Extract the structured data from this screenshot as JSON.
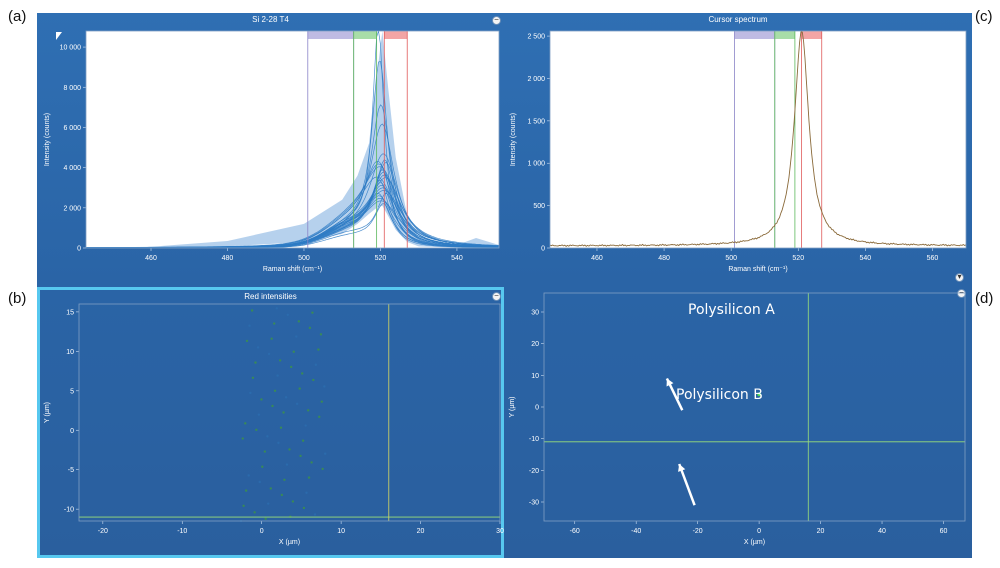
{
  "panel_labels": {
    "a": "(a)",
    "b": "(b)",
    "c": "(c)",
    "d": "(d)"
  },
  "colors": {
    "workspace": "#2f6fb3",
    "plot_border": "#7f9fc4",
    "spectrum": "#2e7bc4",
    "cursor_spectrum": "#8a6a3a",
    "selection_border": "#57c8ef",
    "band_purple": "#b8b4e0",
    "band_green": "#9ed99e",
    "band_red": "#f29b9b"
  },
  "chart_data": [
    {
      "id": "a",
      "type": "line",
      "title": "Si 2-28 T4",
      "xlabel": "Raman shift (cm⁻¹)",
      "ylabel": "Intensity (counts)",
      "xlim": [
        443,
        551
      ],
      "ylim": [
        0,
        10800
      ],
      "xticks": [
        460,
        480,
        500,
        520,
        540
      ],
      "yticks": [
        0,
        2000,
        4000,
        6000,
        8000,
        10000
      ],
      "ytick_labels": [
        "0",
        "2 000",
        "4 000",
        "6 000",
        "8 000",
        "10 000"
      ],
      "bands": [
        {
          "name": "purple",
          "x": [
            501,
            513
          ]
        },
        {
          "name": "green",
          "x": [
            513,
            519
          ]
        },
        {
          "name": "red",
          "x": [
            521,
            527
          ]
        }
      ],
      "series_peaks": [
        10500,
        8900,
        6800,
        5900,
        4500,
        4000,
        3900,
        3800,
        3700,
        3600,
        3500,
        3400,
        3300,
        3200,
        3100,
        3000,
        2900,
        2800,
        2700,
        2600,
        2500,
        2400,
        2300,
        2200,
        2100,
        2000
      ],
      "peak_center": 520.5,
      "envelope": {
        "x": [
          443,
          460,
          480,
          500,
          510,
          514,
          517,
          519,
          520.5,
          522,
          524,
          527,
          530,
          540,
          545,
          551
        ],
        "upper": [
          20,
          60,
          350,
          1200,
          2400,
          3600,
          5200,
          8500,
          10800,
          8000,
          4500,
          1600,
          500,
          150,
          500,
          150
        ],
        "lower": [
          0,
          10,
          80,
          300,
          700,
          1200,
          1700,
          2000,
          2100,
          1600,
          900,
          300,
          80,
          20,
          10,
          0
        ]
      }
    },
    {
      "id": "c",
      "type": "line",
      "title": "Cursor spectrum",
      "xlabel": "Raman shift (cm⁻¹)",
      "ylabel": "Intensity (counts)",
      "xlim": [
        446,
        570
      ],
      "ylim": [
        0,
        2560
      ],
      "xticks": [
        460,
        480,
        500,
        520,
        540,
        560
      ],
      "yticks": [
        0,
        500,
        1000,
        1500,
        2000,
        2500
      ],
      "ytick_labels": [
        "0",
        "500",
        "1 000",
        "1 500",
        "2 000",
        "2 500"
      ],
      "bands": [
        {
          "name": "purple",
          "x": [
            501,
            513
          ]
        },
        {
          "name": "green",
          "x": [
            513,
            519
          ]
        },
        {
          "name": "red",
          "x": [
            521,
            527
          ]
        }
      ],
      "peak_center": 521,
      "peak_value": 2560,
      "baseline": 25
    },
    {
      "id": "b",
      "type": "heatmap",
      "title": "Red intensities",
      "xlabel": "X (µm)",
      "ylabel": "Y (µm)",
      "xlim": [
        -23,
        30
      ],
      "ylim": [
        -11.5,
        16
      ],
      "xticks": [
        -20,
        -10,
        0,
        10,
        20,
        30
      ],
      "yticks": [
        -10,
        -5,
        0,
        5,
        10,
        15
      ],
      "cursor": {
        "x": 16,
        "y": -11
      }
    },
    {
      "id": "d",
      "type": "image",
      "xlabel": "X (µm)",
      "ylabel": "Y (µm)",
      "xlim": [
        -70,
        67
      ],
      "ylim": [
        -36,
        36
      ],
      "xticks": [
        -60,
        -40,
        -20,
        0,
        20,
        40,
        60
      ],
      "yticks": [
        -30,
        -20,
        -10,
        0,
        10,
        20,
        30
      ],
      "cursor": {
        "x": 16,
        "y": -11
      },
      "annotations": [
        "Polysilicon A",
        "Polysilicon B"
      ]
    }
  ]
}
